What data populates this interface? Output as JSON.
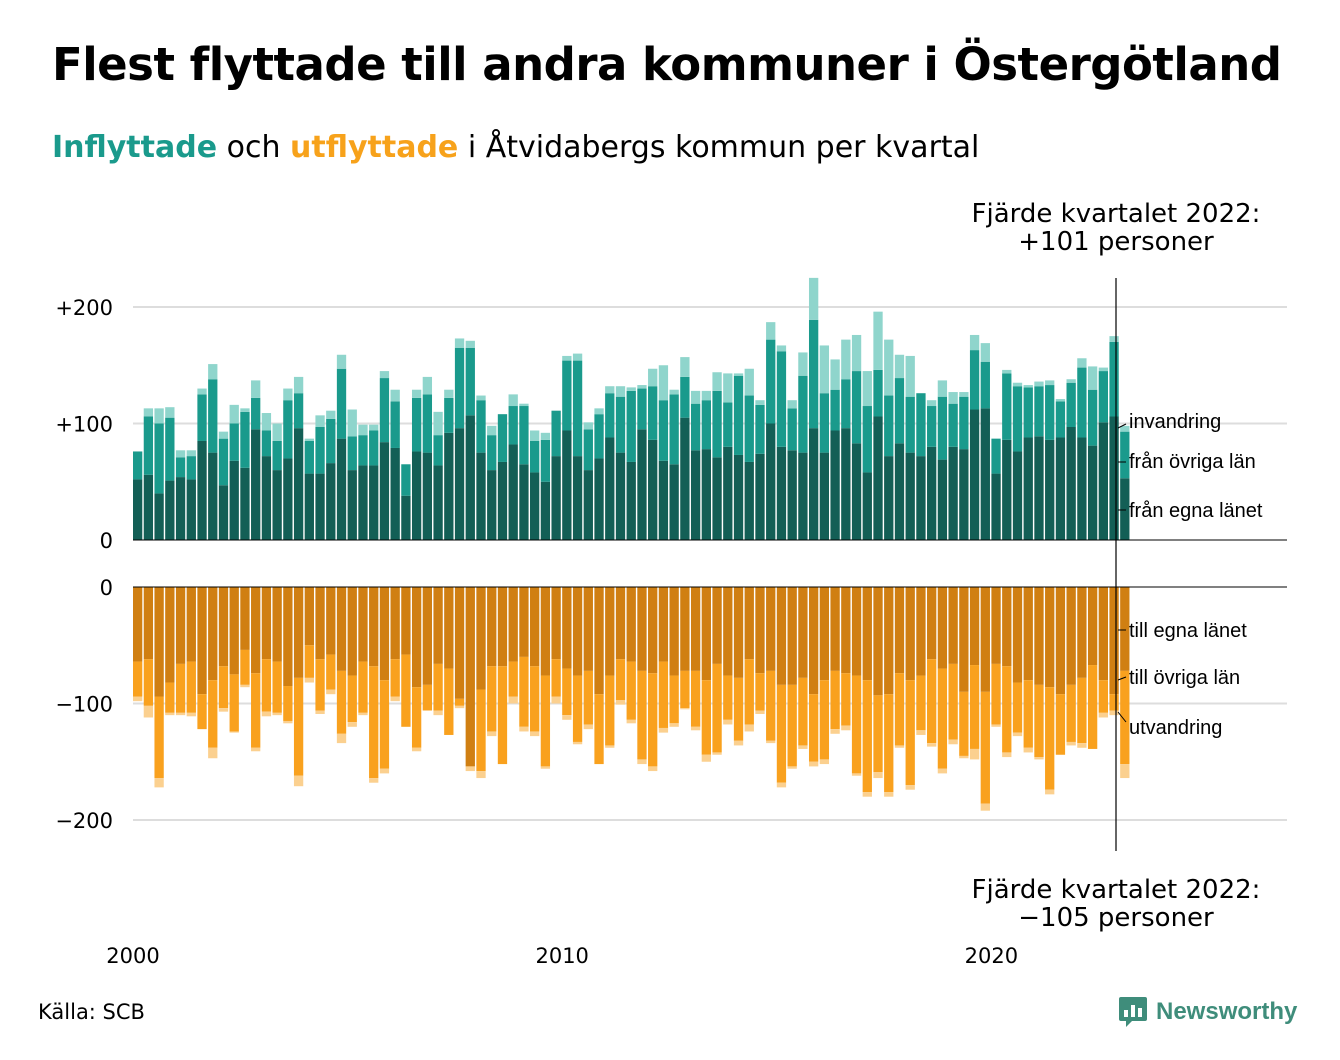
{
  "title": "Flest flyttade till andra kommuner i Östergötland",
  "subtitle": {
    "in_word": "Inflyttade",
    "and_word": "och",
    "out_word": "utflyttade",
    "rest": "i Åtvidabergs kommun per kvartal"
  },
  "source": "Källa: SCB",
  "logo": {
    "text": "Newsworthy",
    "icon": "chart-bubble-icon"
  },
  "colors": {
    "in_dark": "#135f56",
    "in_mid": "#1a9a8c",
    "in_light": "#8fd5cc",
    "out_dark": "#d07f12",
    "out_mid": "#f9a11e",
    "out_light": "#fbd08f",
    "grid": "#dddddd",
    "brand": "#3f8d7b"
  },
  "chart_data": {
    "type": "bar",
    "stacked": true,
    "period": "quarterly",
    "x_ticks": [
      "2000",
      "2010",
      "2020"
    ],
    "y_ticks_top": [
      "+200",
      "+100",
      "0"
    ],
    "y_ticks_bottom": [
      "0",
      "−100",
      "−200"
    ],
    "ylim_top": [
      0,
      230
    ],
    "ylim_bottom": [
      -230,
      0
    ],
    "grid": true,
    "annotation_top": [
      "Fjärde kvartalet 2022:",
      "+101 personer"
    ],
    "annotation_bottom": [
      "Fjärde kvartalet 2022:",
      "−105 personer"
    ],
    "series_in": [
      {
        "name": "från egna länet",
        "values": [
          52,
          56,
          40,
          51,
          54,
          52,
          85,
          75,
          47,
          68,
          62,
          95,
          72,
          60,
          70,
          96,
          57,
          57,
          66,
          87,
          60,
          64,
          64,
          84,
          79,
          38,
          76,
          75,
          64,
          92,
          96,
          107,
          75,
          60,
          67,
          82,
          65,
          58,
          50,
          72,
          94,
          72,
          60,
          70,
          88,
          75,
          67,
          95,
          86,
          68,
          65,
          105,
          77,
          78,
          71,
          80,
          73,
          67,
          74,
          100,
          80,
          77,
          75,
          96,
          75,
          94,
          96,
          83,
          58,
          106,
          72,
          83,
          75,
          72,
          80,
          69,
          80,
          78,
          112,
          113,
          57,
          86,
          76,
          88,
          89,
          86,
          88,
          97,
          88,
          81,
          101,
          106,
          53
        ]
      },
      {
        "name": "från övriga län",
        "values": [
          24,
          50,
          60,
          54,
          17,
          20,
          40,
          63,
          40,
          32,
          48,
          27,
          22,
          25,
          50,
          30,
          28,
          40,
          38,
          60,
          29,
          26,
          30,
          55,
          40,
          27,
          46,
          50,
          26,
          30,
          69,
          58,
          45,
          30,
          41,
          33,
          50,
          27,
          36,
          39,
          60,
          82,
          35,
          38,
          38,
          48,
          61,
          35,
          46,
          52,
          60,
          35,
          40,
          42,
          57,
          38,
          68,
          57,
          42,
          72,
          82,
          36,
          66,
          93,
          51,
          35,
          42,
          62,
          57,
          40,
          52,
          56,
          48,
          54,
          35,
          54,
          37,
          45,
          51,
          40,
          30,
          57,
          56,
          43,
          43,
          47,
          31,
          38,
          60,
          48,
          44,
          64,
          40
        ]
      },
      {
        "name": "invandring",
        "values": [
          0,
          7,
          13,
          9,
          6,
          5,
          5,
          13,
          6,
          16,
          3,
          15,
          15,
          15,
          10,
          14,
          2,
          10,
          7,
          12,
          23,
          9,
          5,
          6,
          10,
          0,
          7,
          15,
          20,
          7,
          8,
          6,
          4,
          8,
          0,
          10,
          2,
          9,
          6,
          0,
          4,
          6,
          6,
          5,
          6,
          9,
          3,
          3,
          15,
          30,
          4,
          17,
          11,
          8,
          16,
          25,
          2,
          23,
          4,
          15,
          5,
          7,
          20,
          36,
          41,
          26,
          34,
          31,
          30,
          50,
          48,
          20,
          35,
          0,
          5,
          14,
          10,
          4,
          13,
          16,
          0,
          3,
          3,
          2,
          4,
          4,
          2,
          3,
          8,
          20,
          3,
          5,
          5
        ]
      }
    ],
    "series_out": [
      {
        "name": "till egna länet",
        "values": [
          64,
          62,
          94,
          82,
          66,
          64,
          92,
          80,
          68,
          75,
          54,
          74,
          62,
          64,
          85,
          78,
          50,
          62,
          58,
          72,
          76,
          64,
          68,
          80,
          62,
          58,
          86,
          84,
          66,
          70,
          96,
          154,
          88,
          68,
          68,
          64,
          60,
          68,
          76,
          62,
          70,
          76,
          72,
          92,
          76,
          62,
          64,
          72,
          74,
          64,
          76,
          72,
          72,
          80,
          66,
          76,
          78,
          62,
          74,
          72,
          84,
          84,
          78,
          92,
          80,
          72,
          74,
          76,
          80,
          93,
          92,
          74,
          80,
          76,
          62,
          70,
          66,
          90,
          67,
          90,
          66,
          68,
          82,
          80,
          84,
          86,
          92,
          84,
          78,
          67,
          80,
          92,
          72
        ]
      },
      {
        "name": "till övriga län",
        "values": [
          30,
          40,
          70,
          26,
          42,
          44,
          30,
          58,
          36,
          49,
          30,
          64,
          45,
          44,
          30,
          84,
          28,
          44,
          30,
          54,
          40,
          44,
          96,
          76,
          32,
          62,
          52,
          22,
          40,
          57,
          6,
          0,
          70,
          56,
          84,
          30,
          60,
          56,
          78,
          32,
          40,
          57,
          46,
          60,
          60,
          35,
          50,
          76,
          80,
          57,
          41,
          32,
          48,
          64,
          76,
          38,
          54,
          56,
          32,
          60,
          84,
          70,
          58,
          58,
          68,
          50,
          45,
          84,
          96,
          66,
          84,
          62,
          90,
          47,
          72,
          86,
          65,
          55,
          72,
          96,
          52,
          74,
          43,
          58,
          62,
          88,
          52,
          49,
          56,
          72,
          28,
          14,
          80
        ]
      },
      {
        "name": "utvandring",
        "values": [
          4,
          10,
          8,
          2,
          2,
          3,
          0,
          9,
          3,
          1,
          2,
          3,
          4,
          2,
          2,
          9,
          4,
          3,
          4,
          8,
          4,
          2,
          4,
          4,
          4,
          0,
          3,
          0,
          4,
          0,
          2,
          4,
          6,
          4,
          0,
          6,
          4,
          4,
          2,
          6,
          4,
          2,
          4,
          0,
          2,
          4,
          3,
          4,
          4,
          4,
          3,
          1,
          3,
          6,
          2,
          4,
          4,
          6,
          3,
          2,
          4,
          2,
          3,
          4,
          4,
          4,
          4,
          2,
          4,
          5,
          4,
          2,
          4,
          4,
          3,
          4,
          4,
          2,
          9,
          6,
          2,
          4,
          3,
          4,
          2,
          4,
          0,
          3,
          4,
          0,
          4,
          4,
          12
        ]
      }
    ]
  }
}
